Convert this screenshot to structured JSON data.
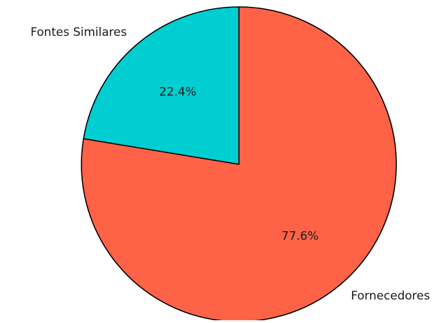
{
  "chart_data": {
    "type": "pie",
    "title": "",
    "slices": [
      {
        "label": "Fornecedores",
        "value": 77.6,
        "percent_label": "77.6%",
        "color": "#ff6347"
      },
      {
        "label": "Fontes Similares",
        "value": 22.4,
        "percent_label": "22.4%",
        "color": "#00ced1"
      }
    ],
    "start_angle_deg": 90,
    "direction": "clockwise",
    "edge_color": "#000000",
    "legend": "none"
  }
}
